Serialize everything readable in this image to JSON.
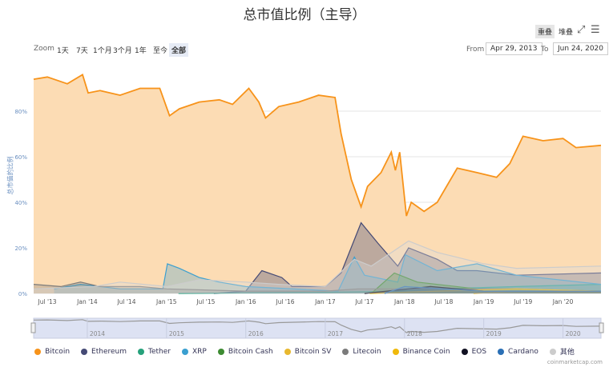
{
  "title": "总市值比例（主导）",
  "toolbar": {
    "overlap": "重叠",
    "stack": "堆叠",
    "fullscreen_icon": "expand-icon",
    "menu_icon": "hamburger-icon"
  },
  "zoom": {
    "label": "Zoom",
    "buttons": [
      "1天",
      "7天",
      "1个月",
      "3个月",
      "1年",
      "至今",
      "全部"
    ],
    "active": "全部"
  },
  "range": {
    "from_label": "From",
    "from": "Apr 29, 2013",
    "to_label": "To",
    "to": "Jun 24, 2020"
  },
  "credit": "coinmarketcap.com",
  "chart_data": {
    "type": "area",
    "ylabel": "总市值的比例",
    "ylim": [
      0,
      100
    ],
    "yticks": [
      "0%",
      "20%",
      "40%",
      "60%",
      "80%"
    ],
    "xlim": [
      "2013-04-29",
      "2020-06-24"
    ],
    "xticks": [
      [
        "2013-07-01",
        "Jul '13"
      ],
      [
        "2014-01-01",
        "Jan '14"
      ],
      [
        "2014-07-01",
        "Jul '14"
      ],
      [
        "2015-01-01",
        "Jan '15"
      ],
      [
        "2015-07-01",
        "Jul '15"
      ],
      [
        "2016-01-01",
        "Jan '16"
      ],
      [
        "2016-07-01",
        "Jul '16"
      ],
      [
        "2017-01-01",
        "Jan '17"
      ],
      [
        "2017-07-01",
        "Jul '17"
      ],
      [
        "2018-01-01",
        "Jan '18"
      ],
      [
        "2018-07-01",
        "Jul '18"
      ],
      [
        "2019-01-01",
        "Jan '19"
      ],
      [
        "2019-07-01",
        "Jul '19"
      ],
      [
        "2020-01-01",
        "Jan '20"
      ]
    ],
    "navigator_ticks": [
      [
        "2014-01-01",
        "2014"
      ],
      [
        "2015-01-01",
        "2015"
      ],
      [
        "2016-01-01",
        "2016"
      ],
      [
        "2017-01-01",
        "2017"
      ],
      [
        "2018-01-01",
        "2018"
      ],
      [
        "2019-01-01",
        "2019"
      ],
      [
        "2020-01-01",
        "2020"
      ]
    ],
    "grid": true,
    "legend": "bottom",
    "series": [
      {
        "name": "Bitcoin",
        "color": "#f7931a",
        "fill": "#fcdcb4",
        "points": [
          [
            "2013-04-29",
            94
          ],
          [
            "2013-07-01",
            95
          ],
          [
            "2013-10-01",
            92
          ],
          [
            "2013-12-10",
            96
          ],
          [
            "2014-01-05",
            88
          ],
          [
            "2014-03-01",
            89
          ],
          [
            "2014-06-01",
            87
          ],
          [
            "2014-09-01",
            90
          ],
          [
            "2014-12-01",
            90
          ],
          [
            "2015-01-15",
            78
          ],
          [
            "2015-03-01",
            81
          ],
          [
            "2015-06-01",
            84
          ],
          [
            "2015-09-01",
            85
          ],
          [
            "2015-11-01",
            83
          ],
          [
            "2016-01-15",
            90
          ],
          [
            "2016-03-01",
            84
          ],
          [
            "2016-04-01",
            77
          ],
          [
            "2016-06-01",
            82
          ],
          [
            "2016-09-01",
            84
          ],
          [
            "2016-12-01",
            87
          ],
          [
            "2017-02-15",
            86
          ],
          [
            "2017-03-15",
            70
          ],
          [
            "2017-05-01",
            50
          ],
          [
            "2017-06-15",
            38
          ],
          [
            "2017-07-15",
            47
          ],
          [
            "2017-09-15",
            53
          ],
          [
            "2017-11-01",
            62
          ],
          [
            "2017-11-20",
            54
          ],
          [
            "2017-12-10",
            62
          ],
          [
            "2018-01-10",
            34
          ],
          [
            "2018-02-01",
            40
          ],
          [
            "2018-04-01",
            36
          ],
          [
            "2018-06-01",
            40
          ],
          [
            "2018-09-01",
            55
          ],
          [
            "2018-12-01",
            53
          ],
          [
            "2019-03-01",
            51
          ],
          [
            "2019-05-01",
            57
          ],
          [
            "2019-07-01",
            69
          ],
          [
            "2019-10-01",
            67
          ],
          [
            "2020-01-01",
            68
          ],
          [
            "2020-03-01",
            64
          ],
          [
            "2020-06-24",
            65
          ]
        ]
      },
      {
        "name": "Ethereum",
        "color": "#454a75",
        "fill": "rgba(69,74,117,0.35)",
        "points": [
          [
            "2015-08-07",
            0
          ],
          [
            "2016-01-01",
            1
          ],
          [
            "2016-03-15",
            10
          ],
          [
            "2016-06-15",
            7
          ],
          [
            "2016-08-01",
            3
          ],
          [
            "2017-01-01",
            3
          ],
          [
            "2017-03-15",
            9
          ],
          [
            "2017-06-15",
            31
          ],
          [
            "2017-09-01",
            22
          ],
          [
            "2017-12-01",
            12
          ],
          [
            "2018-01-20",
            20
          ],
          [
            "2018-06-01",
            15
          ],
          [
            "2018-09-01",
            10
          ],
          [
            "2018-12-01",
            10
          ],
          [
            "2019-06-01",
            8
          ],
          [
            "2020-06-24",
            9
          ]
        ]
      },
      {
        "name": "Tether",
        "color": "#26a17b",
        "fill": "rgba(38,161,123,0.35)",
        "points": [
          [
            "2015-02-25",
            0
          ],
          [
            "2017-01-01",
            0.5
          ],
          [
            "2017-12-01",
            1
          ],
          [
            "2018-06-01",
            2
          ],
          [
            "2019-06-01",
            3
          ],
          [
            "2020-06-24",
            4
          ]
        ]
      },
      {
        "name": "XRP",
        "color": "#3a9fd0",
        "fill": "rgba(58,159,208,0.3)",
        "points": [
          [
            "2013-08-01",
            2
          ],
          [
            "2013-12-01",
            4
          ],
          [
            "2014-06-01",
            2
          ],
          [
            "2014-12-15",
            2
          ],
          [
            "2015-01-05",
            13
          ],
          [
            "2015-03-01",
            11
          ],
          [
            "2015-06-01",
            7
          ],
          [
            "2015-09-01",
            5
          ],
          [
            "2016-01-01",
            3
          ],
          [
            "2017-03-01",
            1
          ],
          [
            "2017-05-15",
            16
          ],
          [
            "2017-07-01",
            8
          ],
          [
            "2017-12-01",
            5
          ],
          [
            "2018-01-05",
            17
          ],
          [
            "2018-06-01",
            10
          ],
          [
            "2018-12-01",
            13
          ],
          [
            "2019-06-01",
            8
          ],
          [
            "2020-06-24",
            4
          ]
        ]
      },
      {
        "name": "Bitcoin Cash",
        "color": "#3d8b32",
        "fill": "rgba(61,139,50,0.35)",
        "points": [
          [
            "2017-08-01",
            0
          ],
          [
            "2017-11-15",
            9
          ],
          [
            "2018-03-01",
            5
          ],
          [
            "2018-12-01",
            2
          ],
          [
            "2019-06-01",
            2
          ],
          [
            "2020-06-24",
            1
          ]
        ]
      },
      {
        "name": "Bitcoin SV",
        "color": "#e8b82f",
        "fill": "rgba(232,184,47,0.3)",
        "points": [
          [
            "2018-11-15",
            0
          ],
          [
            "2019-06-01",
            1
          ],
          [
            "2020-06-24",
            1
          ]
        ]
      },
      {
        "name": "Litecoin",
        "color": "#7b7b7b",
        "fill": "rgba(123,123,123,0.3)",
        "points": [
          [
            "2013-04-29",
            4
          ],
          [
            "2013-09-01",
            3
          ],
          [
            "2013-12-01",
            5
          ],
          [
            "2014-03-01",
            3
          ],
          [
            "2014-09-01",
            3
          ],
          [
            "2015-01-01",
            2
          ],
          [
            "2016-01-01",
            1
          ],
          [
            "2017-01-01",
            1
          ],
          [
            "2017-06-01",
            2
          ],
          [
            "2018-01-01",
            2
          ],
          [
            "2019-06-01",
            2
          ],
          [
            "2020-06-24",
            1
          ]
        ]
      },
      {
        "name": "Binance Coin",
        "color": "#f0b90b",
        "fill": "rgba(240,185,11,0.3)",
        "points": [
          [
            "2017-07-25",
            0
          ],
          [
            "2018-06-01",
            1
          ],
          [
            "2019-06-01",
            2
          ],
          [
            "2020-06-24",
            1
          ]
        ]
      },
      {
        "name": "EOS",
        "color": "#111122",
        "fill": "rgba(17,17,34,0.3)",
        "points": [
          [
            "2017-07-01",
            0
          ],
          [
            "2018-05-01",
            3
          ],
          [
            "2019-01-01",
            1
          ],
          [
            "2020-06-24",
            1
          ]
        ]
      },
      {
        "name": "Cardano",
        "color": "#2a6fb5",
        "fill": "rgba(42,111,181,0.3)",
        "points": [
          [
            "2017-10-01",
            0
          ],
          [
            "2018-01-01",
            3
          ],
          [
            "2019-01-01",
            1
          ],
          [
            "2020-06-24",
            1
          ]
        ]
      },
      {
        "name": "其他",
        "color": "#cccccc",
        "fill": "rgba(220,220,220,0.35)",
        "points": [
          [
            "2013-04-29",
            2
          ],
          [
            "2014-02-01",
            3
          ],
          [
            "2014-06-01",
            5
          ],
          [
            "2015-01-01",
            3
          ],
          [
            "2015-06-01",
            6
          ],
          [
            "2016-01-01",
            5
          ],
          [
            "2016-06-01",
            4
          ],
          [
            "2017-01-01",
            3
          ],
          [
            "2017-05-15",
            15
          ],
          [
            "2017-08-01",
            12
          ],
          [
            "2018-01-20",
            23
          ],
          [
            "2018-06-01",
            18
          ],
          [
            "2019-01-01",
            13
          ],
          [
            "2019-06-01",
            11
          ],
          [
            "2020-06-24",
            12
          ]
        ]
      }
    ]
  }
}
